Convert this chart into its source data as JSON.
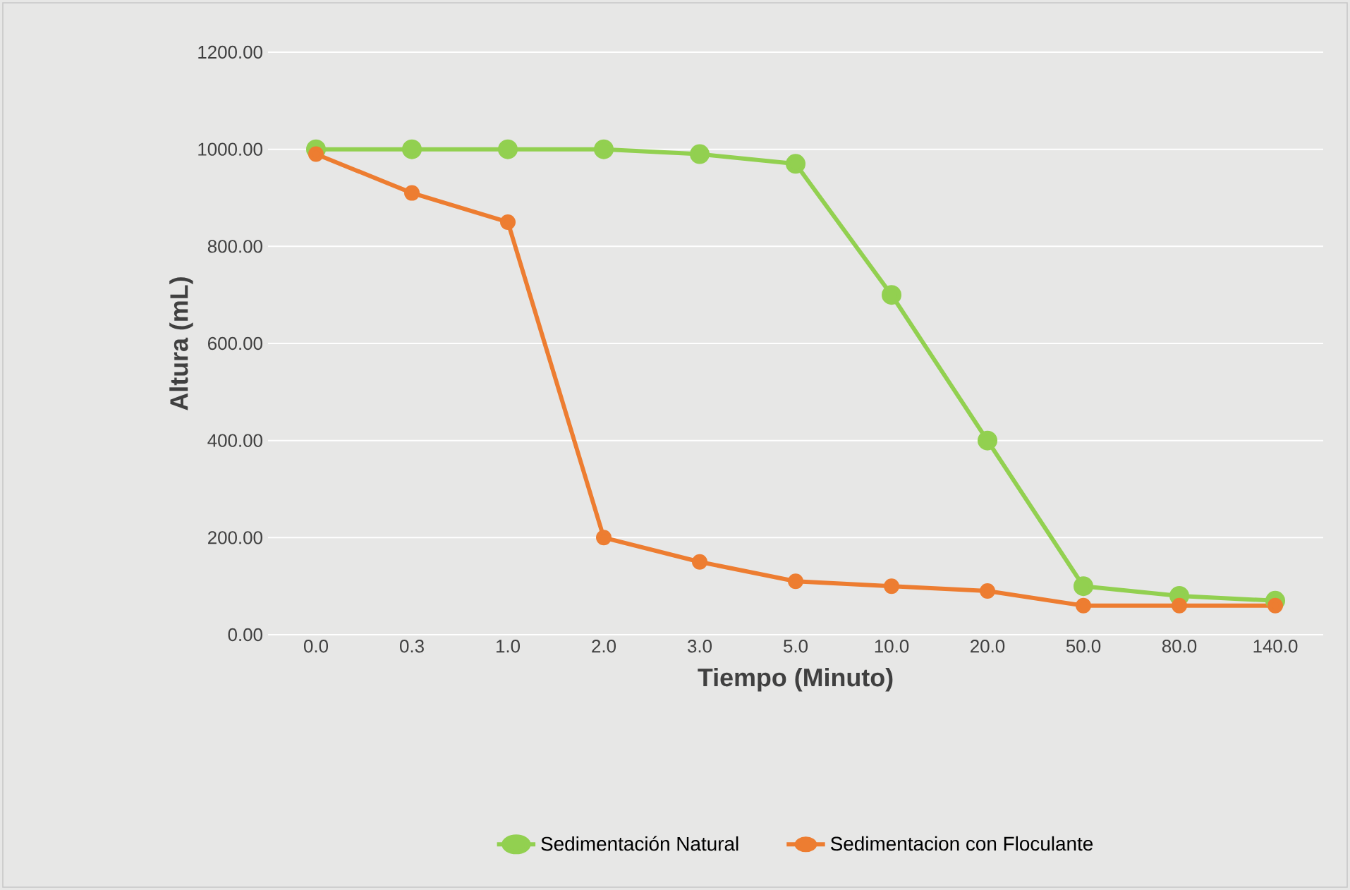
{
  "chart_data": {
    "type": "line",
    "xlabel": "Tiempo (Minuto)",
    "ylabel": "Altura (mL)",
    "categories": [
      "0.0",
      "0.3",
      "1.0",
      "2.0",
      "3.0",
      "5.0",
      "10.0",
      "20.0",
      "50.0",
      "80.0",
      "140.0"
    ],
    "series": [
      {
        "name": "Sedimentación Natural",
        "color": "#92d050",
        "values": [
          1000,
          1000,
          1000,
          1000,
          990,
          970,
          700,
          400,
          100,
          80,
          70
        ]
      },
      {
        "name": "Sedimentacion con Floculante",
        "color": "#ed7d31",
        "values": [
          990,
          910,
          850,
          200,
          150,
          110,
          100,
          90,
          60,
          60,
          60
        ]
      }
    ],
    "ylim": [
      0,
      1200
    ],
    "yticks": [
      {
        "value": 0,
        "label": "0.00"
      },
      {
        "value": 200,
        "label": "200.00"
      },
      {
        "value": 400,
        "label": "400.00"
      },
      {
        "value": 600,
        "label": "600.00"
      },
      {
        "value": 800,
        "label": "800.00"
      },
      {
        "value": 1000,
        "label": "1000.00"
      },
      {
        "value": 1200,
        "label": "1200.00"
      }
    ],
    "grid": "y",
    "legend": "bottom",
    "marker": "circle",
    "line_style": "solid"
  }
}
